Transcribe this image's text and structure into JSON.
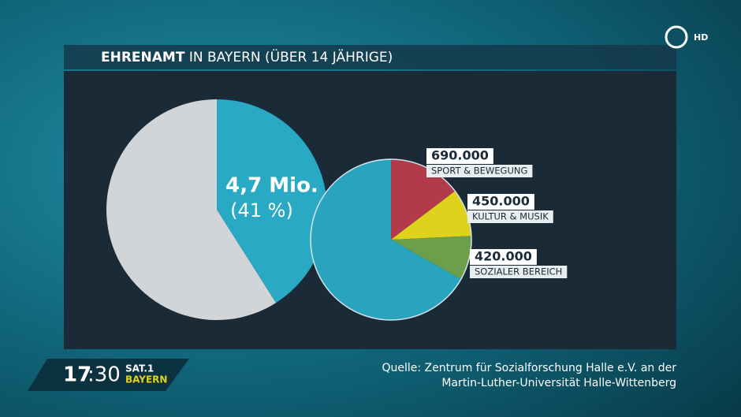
{
  "title_bold": "EHRENAMT",
  "title_rest": "IN BAYERN (ÜBER 14 JÄHRIGE)",
  "chart_data": [
    {
      "type": "pie",
      "values": [
        41,
        59
      ],
      "value_labels": [
        "(41 %)",
        null
      ],
      "annotation": "4,7 Mio.",
      "colors": [
        "#29a9c3",
        "#d2d5d7"
      ]
    },
    {
      "type": "pie",
      "categories": [
        "SPORT & BEWEGUNG",
        "KULTUR & MUSIK",
        "SOZIALER BEREICH",
        null
      ],
      "values": [
        690000,
        450000,
        420000,
        3140000
      ],
      "value_labels": [
        "690.000",
        "450.000",
        "420.000",
        null
      ],
      "colors": [
        "#b23b4b",
        "#dfd21c",
        "#6b9f4a",
        "#2aa3be"
      ]
    }
  ],
  "source": [
    "Quelle: Zentrum für Sozialforschung Halle e.V. an der",
    "Martin-Luther-Universität Halle-Wittenberg"
  ],
  "broadcast": {
    "hour": "17",
    "minute": ":30",
    "channel": "SAT.1",
    "region": "BAYERN",
    "quality": "HD"
  }
}
